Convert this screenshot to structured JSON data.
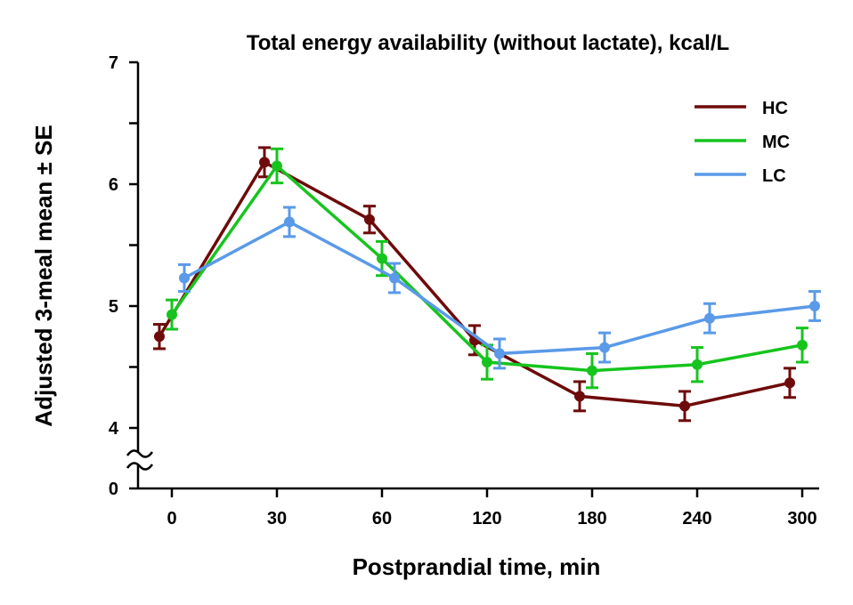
{
  "chart_data": {
    "type": "line",
    "title": "Total energy availability (without lactate), kcal/L",
    "xlabel": "Postprandial time, min",
    "ylabel": "Adjusted 3-meal mean ± SE",
    "categories": [
      "0",
      "30",
      "60",
      "120",
      "180",
      "240",
      "300"
    ],
    "y_ticks": [
      "0",
      "4",
      "5",
      "6",
      "7"
    ],
    "ylim": [
      4,
      7
    ],
    "y_axis_break": true,
    "grid": false,
    "legend_position": "top-right",
    "series": [
      {
        "name": "HC",
        "color": "#6e0a0a",
        "values": [
          4.75,
          6.18,
          5.71,
          4.72,
          4.26,
          4.18,
          4.37
        ],
        "se": [
          0.1,
          0.12,
          0.11,
          0.12,
          0.12,
          0.12,
          0.12
        ]
      },
      {
        "name": "MC",
        "color": "#16c41e",
        "values": [
          4.93,
          6.15,
          5.39,
          4.54,
          4.47,
          4.52,
          4.68
        ],
        "se": [
          0.12,
          0.14,
          0.14,
          0.14,
          0.14,
          0.14,
          0.14
        ]
      },
      {
        "name": "LC",
        "color": "#5a9ae8",
        "values": [
          5.23,
          5.69,
          5.23,
          4.61,
          4.66,
          4.9,
          5.0
        ],
        "se": [
          0.11,
          0.12,
          0.12,
          0.12,
          0.12,
          0.12,
          0.12
        ]
      }
    ]
  }
}
